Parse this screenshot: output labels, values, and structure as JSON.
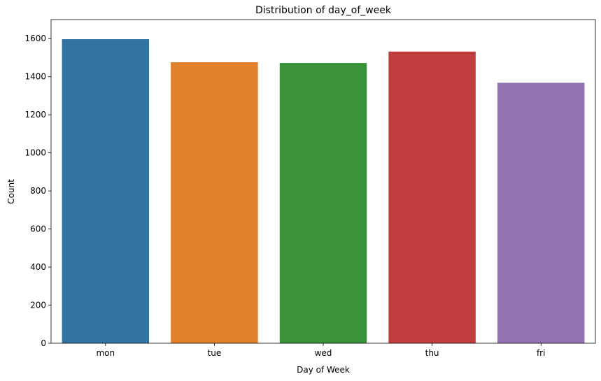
{
  "chart_data": {
    "type": "bar",
    "title": "Distribution of day_of_week",
    "xlabel": "Day of Week",
    "ylabel": "Count",
    "categories": [
      "mon",
      "tue",
      "wed",
      "thu",
      "fri"
    ],
    "values": [
      1597,
      1476,
      1472,
      1532,
      1368
    ],
    "colors": [
      "#3274a1",
      "#e1812c",
      "#3a923a",
      "#c03d3e",
      "#9372b2"
    ],
    "ylim": [
      0,
      1700
    ],
    "yticks": [
      0,
      200,
      400,
      600,
      800,
      1000,
      1200,
      1400,
      1600
    ],
    "grid": false,
    "legend": "none"
  }
}
